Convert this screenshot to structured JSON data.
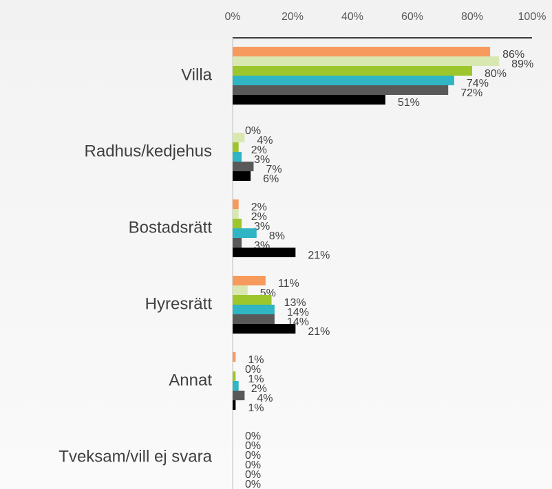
{
  "chart_data": {
    "type": "bar",
    "orientation": "horizontal",
    "categories": [
      "Villa",
      "Radhus/kedjehus",
      "Bostadsrätt",
      "Hyresrätt",
      "Annat",
      "Tveksam/vill ej svara"
    ],
    "series": [
      {
        "color": "#f79a5e",
        "values": [
          86,
          0,
          2,
          11,
          1,
          0
        ],
        "value_labels": [
          "86%",
          "0%",
          "2%",
          "11%",
          "1%",
          "0%"
        ]
      },
      {
        "color": "#d9e8b0",
        "values": [
          89,
          4,
          2,
          5,
          0,
          0
        ],
        "value_labels": [
          "89%",
          "4%",
          "2%",
          "5%",
          "0%",
          "0%"
        ]
      },
      {
        "color": "#9dc62d",
        "values": [
          80,
          2,
          3,
          13,
          1,
          0
        ],
        "value_labels": [
          "80%",
          "2%",
          "3%",
          "13%",
          "1%",
          "0%"
        ]
      },
      {
        "color": "#2fb5c4",
        "values": [
          74,
          3,
          8,
          14,
          2,
          0
        ],
        "value_labels": [
          "74%",
          "3%",
          "8%",
          "14%",
          "2%",
          "0%"
        ]
      },
      {
        "color": "#595959",
        "values": [
          72,
          7,
          3,
          14,
          4,
          0
        ],
        "value_labels": [
          "72%",
          "7%",
          "3%",
          "14%",
          "4%",
          "0%"
        ]
      },
      {
        "color": "#000000",
        "values": [
          51,
          6,
          21,
          21,
          1,
          0
        ],
        "value_labels": [
          "51%",
          "6%",
          "21%",
          "21%",
          "1%",
          "0%"
        ]
      }
    ],
    "xlim": [
      0,
      100
    ],
    "xticks": [
      {
        "value": 0,
        "label": "0%"
      },
      {
        "value": 20,
        "label": "20%"
      },
      {
        "value": 40,
        "label": "40%"
      },
      {
        "value": 60,
        "label": "60%"
      },
      {
        "value": 80,
        "label": "80%"
      },
      {
        "value": 100,
        "label": "100%"
      }
    ],
    "grid": false
  }
}
